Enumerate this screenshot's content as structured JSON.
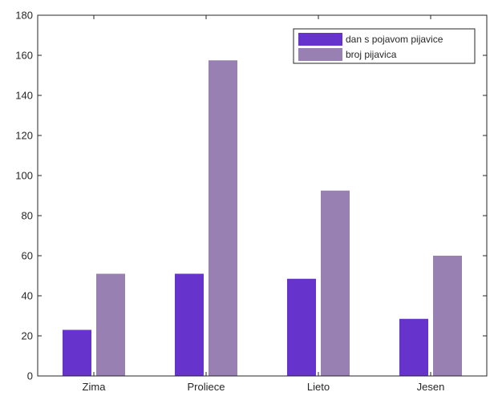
{
  "chart_data": {
    "type": "bar",
    "categories": [
      "Zima",
      "Proliece",
      "Lieto",
      "Jesen"
    ],
    "series": [
      {
        "name": "dan s pojavom pijavice",
        "values": [
          23,
          51,
          48.5,
          28.5
        ],
        "color": "#6633CC"
      },
      {
        "name": "broj pijavica",
        "values": [
          51,
          157.5,
          92.5,
          60
        ],
        "color": "#9980B3"
      }
    ],
    "title": "",
    "xlabel": "",
    "ylabel": "",
    "ylim": [
      0,
      180
    ],
    "yticks": [
      0,
      20,
      40,
      60,
      80,
      100,
      120,
      140,
      160,
      180
    ],
    "grid": false,
    "legend_position": "top-right",
    "box": true
  }
}
